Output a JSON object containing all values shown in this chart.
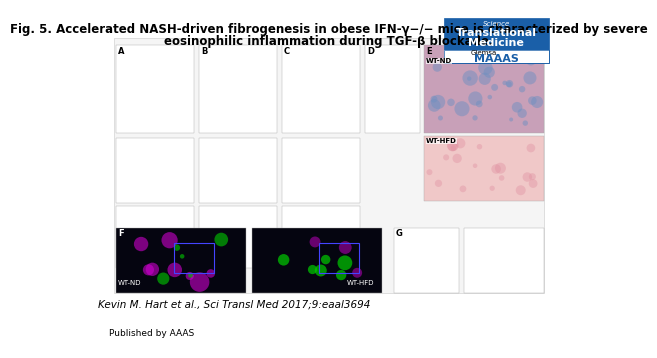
{
  "title_line1": "Fig. 5. Accelerated NASH-driven fibrogenesis in obese IFN-γ−/− mice is characterized by severe",
  "title_line2": "eosinophilic inflammation during TGF-β blockade.",
  "citation": "Kevin M. Hart et al., Sci Transl Med 2017;9:eaal3694",
  "published_by": "Published by AAAS",
  "bg_color": "#ffffff",
  "journal_box_color": "#1a5fa8",
  "journal_text_color": "#ffffff",
  "journal_bottom_color": "#ffffff",
  "journal_name_line1": "Science",
  "journal_name_line2": "Translational",
  "journal_name_line3": "Medicine",
  "journal_logo_text": "MAAAS",
  "title_fontsize": 8.5,
  "citation_fontsize": 7.5,
  "published_fontsize": 6.5
}
